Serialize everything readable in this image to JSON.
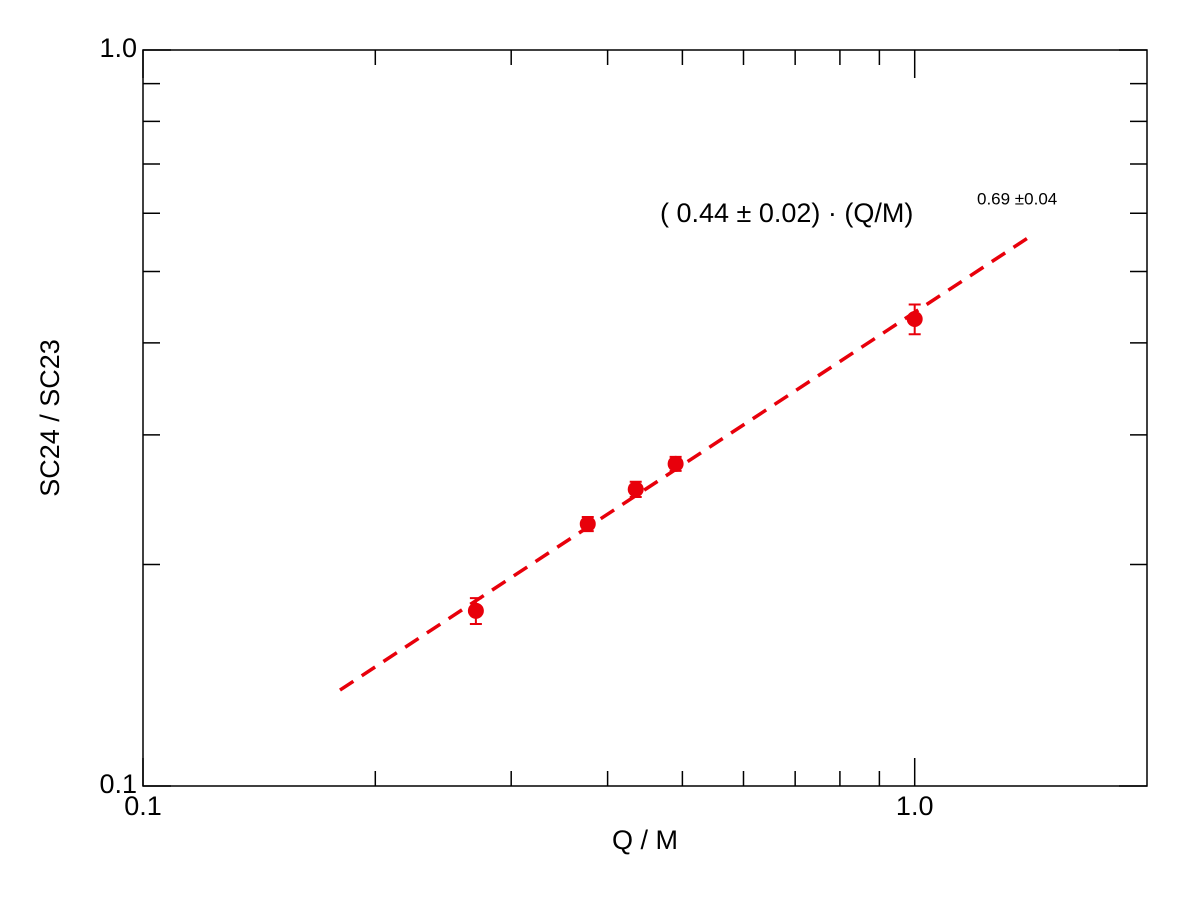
{
  "chart_data": {
    "type": "scatter",
    "x_label": "Q / M",
    "y_label": "SC24 / SC23",
    "annotation": "( 0.44 ± 0.02) · (Q/M)",
    "annotation_superscript": "0.69 ±0.04",
    "log_x": true,
    "log_y": true,
    "xlim": [
      0.1,
      2.0
    ],
    "ylim": [
      0.1,
      1.0
    ],
    "xticks": [
      0.1,
      {
        "value": 1,
        "label": "1.0"
      }
    ],
    "yticks": [
      0.1,
      {
        "value": 1,
        "label": "1.0"
      }
    ],
    "xminorticks": [
      0.2,
      0.3,
      0.4,
      0.5,
      0.6,
      0.7,
      0.8,
      0.9
    ],
    "yminorticks": [
      0.2,
      0.3,
      0.4,
      0.5,
      0.6,
      0.7,
      0.8,
      0.9
    ],
    "series": [
      {
        "color": "#e8000b",
        "x": [
          0.27,
          0.377,
          0.435,
          0.49,
          1.0
        ],
        "values": [
          0.173,
          0.227,
          0.253,
          0.274,
          0.431
        ],
        "errors": [
          0.007,
          0.005,
          0.006,
          0.006,
          0.02
        ]
      }
    ],
    "fit": {
      "color": "#e8000b",
      "x": [
        0.18,
        1.4
      ],
      "values": [
        0.135,
        0.555
      ]
    }
  }
}
